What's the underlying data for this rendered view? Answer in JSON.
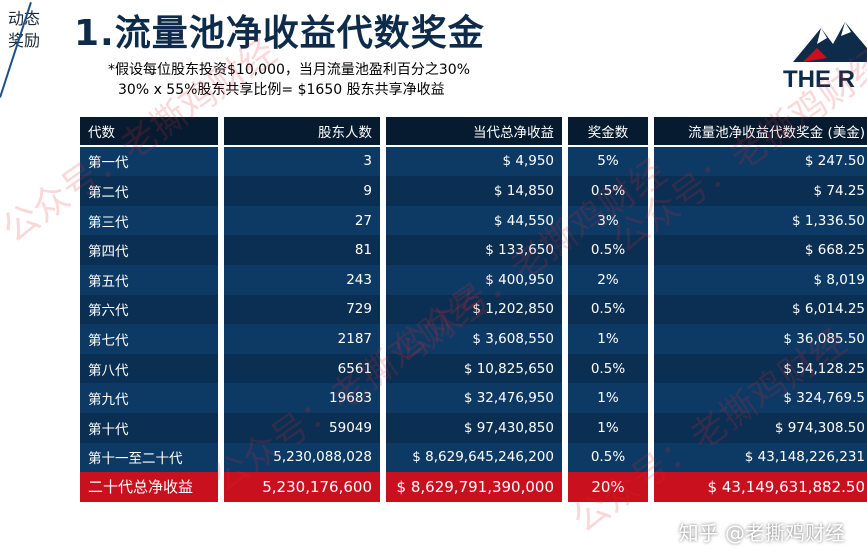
{
  "side_label": [
    "动态",
    "奖励"
  ],
  "title": "1.流量池净收益代数奖金",
  "note": {
    "line1": "*假设每位股东投资$10,000，当月流量池盈利百分之30%",
    "line2": "30% x 55%股东共享比例=  $1650 股东共享净收益"
  },
  "logo_text": "THE R",
  "table": {
    "headers": [
      "代数",
      "股东人数",
      "当代总净收益",
      "奖金数",
      "流量池净收益代数奖金 (美金)"
    ],
    "rows": [
      {
        "gen": "第一代",
        "holders": "3",
        "net": "$ 4,950",
        "pct": "5%",
        "bonus": "$ 247.50"
      },
      {
        "gen": "第二代",
        "holders": "9",
        "net": "$ 14,850",
        "pct": "0.5%",
        "bonus": "$ 74.25"
      },
      {
        "gen": "第三代",
        "holders": "27",
        "net": "$ 44,550",
        "pct": "3%",
        "bonus": "$ 1,336.50"
      },
      {
        "gen": "第四代",
        "holders": "81",
        "net": "$ 133,650",
        "pct": "0.5%",
        "bonus": "$ 668.25"
      },
      {
        "gen": "第五代",
        "holders": "243",
        "net": "$  400,950",
        "pct": "2%",
        "bonus": "$ 8,019"
      },
      {
        "gen": "第六代",
        "holders": "729",
        "net": "$ 1,202,850",
        "pct": "0.5%",
        "bonus": "$ 6,014.25"
      },
      {
        "gen": "第七代",
        "holders": "2187",
        "net": "$ 3,608,550",
        "pct": "1%",
        "bonus": "$ 36,085.50"
      },
      {
        "gen": "第八代",
        "holders": "6561",
        "net": "$ 10,825,650",
        "pct": "0.5%",
        "bonus": "$ 54,128.25"
      },
      {
        "gen": "第九代",
        "holders": "19683",
        "net": "$ 32,476,950",
        "pct": "1%",
        "bonus": "$ 324,769.5"
      },
      {
        "gen": "第十代",
        "holders": "59049",
        "net": "$ 97,430,850",
        "pct": "1%",
        "bonus": "$ 974,308.50"
      },
      {
        "gen": "第十一至二十代",
        "holders": "5,230,088,028",
        "net": "$ 8,629,645,246,200",
        "pct": "0.5%",
        "bonus": "$ 43,148,226,231"
      }
    ],
    "total": {
      "gen": "二十代总净收益",
      "holders": "5,230,176,600",
      "net": "$ 8,629,791,390,000",
      "pct": "20%",
      "bonus": "$ 43,149,631,882.50"
    }
  },
  "watermark": "公众号：老撕鸡财经",
  "zhihu": "知乎 @老撕鸡财经",
  "colors": {
    "header": "#071b30",
    "row_light": "#0d3a64",
    "row_dark": "#0a2f53",
    "total": "#c8101f",
    "title": "#0e2c4a"
  }
}
